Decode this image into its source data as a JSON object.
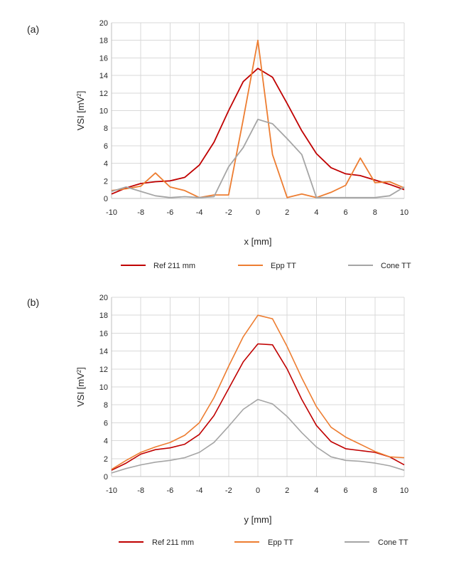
{
  "colors": {
    "Ref 211 mm": "#c00000",
    "Epp TT": "#ed7d31",
    "Cone TT": "#a5a5a5"
  },
  "chart_data": [
    {
      "panel_label": "(a)",
      "type": "line",
      "xlabel": "x [mm]",
      "ylabel": "VSI [mV",
      "ylabel_sup": "2",
      "ylabel_end": "]",
      "xlim": [
        -10,
        10
      ],
      "ylim": [
        0,
        20
      ],
      "xticks": [
        -10,
        -8,
        -6,
        -4,
        -2,
        0,
        2,
        4,
        6,
        8,
        10
      ],
      "yticks": [
        0,
        2,
        4,
        6,
        8,
        10,
        12,
        14,
        16,
        18,
        20
      ],
      "grid": true,
      "legend_position": "bottom",
      "x": [
        -10,
        -9,
        -8,
        -7,
        -6,
        -5,
        -4,
        -3,
        -2,
        -1,
        0,
        1,
        2,
        3,
        4,
        5,
        6,
        7,
        8,
        9,
        10
      ],
      "series": [
        {
          "name": "Ref 211 mm",
          "values": [
            0.5,
            1.2,
            1.7,
            1.9,
            2.0,
            2.4,
            3.8,
            6.4,
            10.0,
            13.3,
            14.8,
            13.8,
            10.8,
            7.7,
            5.1,
            3.5,
            2.8,
            2.6,
            2.1,
            1.6,
            1.0
          ]
        },
        {
          "name": "Epp TT",
          "values": [
            0.9,
            1.1,
            1.4,
            2.9,
            1.3,
            0.9,
            0.1,
            0.4,
            0.4,
            9.0,
            18.0,
            5.0,
            0.1,
            0.5,
            0.1,
            0.7,
            1.5,
            4.6,
            1.8,
            1.9,
            1.2
          ]
        },
        {
          "name": "Cone TT",
          "values": [
            0.8,
            1.3,
            0.8,
            0.3,
            0.1,
            0.2,
            0.1,
            0.2,
            3.6,
            5.8,
            9.0,
            8.5,
            6.8,
            5.0,
            0.1,
            0.1,
            0.1,
            0.1,
            0.1,
            0.3,
            1.3
          ]
        }
      ]
    },
    {
      "panel_label": "(b)",
      "type": "line",
      "xlabel": "y [mm]",
      "ylabel": "VSI [mV",
      "ylabel_sup": "2",
      "ylabel_end": "]",
      "xlim": [
        -10,
        10
      ],
      "ylim": [
        0,
        20
      ],
      "xticks": [
        -10,
        -8,
        -6,
        -4,
        -2,
        0,
        2,
        4,
        6,
        8,
        10
      ],
      "yticks": [
        0,
        2,
        4,
        6,
        8,
        10,
        12,
        14,
        16,
        18,
        20
      ],
      "grid": true,
      "legend_position": "bottom",
      "x": [
        -10,
        -9,
        -8,
        -7,
        -6,
        -5,
        -4,
        -3,
        -2,
        -1,
        0,
        1,
        2,
        3,
        4,
        5,
        6,
        7,
        8,
        9,
        10
      ],
      "series": [
        {
          "name": "Ref 211 mm",
          "values": [
            0.7,
            1.5,
            2.5,
            3.0,
            3.2,
            3.6,
            4.7,
            6.8,
            9.8,
            12.8,
            14.8,
            14.7,
            12.0,
            8.6,
            5.7,
            3.9,
            3.1,
            2.9,
            2.7,
            2.2,
            1.3
          ]
        },
        {
          "name": "Epp TT",
          "values": [
            0.8,
            1.8,
            2.7,
            3.3,
            3.8,
            4.6,
            6.0,
            8.8,
            12.3,
            15.6,
            18.0,
            17.6,
            14.5,
            11.0,
            7.8,
            5.5,
            4.4,
            3.6,
            2.8,
            2.2,
            2.1
          ]
        },
        {
          "name": "Cone TT",
          "values": [
            0.4,
            0.9,
            1.3,
            1.6,
            1.8,
            2.1,
            2.7,
            3.8,
            5.6,
            7.5,
            8.6,
            8.1,
            6.7,
            4.9,
            3.3,
            2.2,
            1.8,
            1.7,
            1.5,
            1.2,
            0.7
          ]
        }
      ]
    }
  ]
}
